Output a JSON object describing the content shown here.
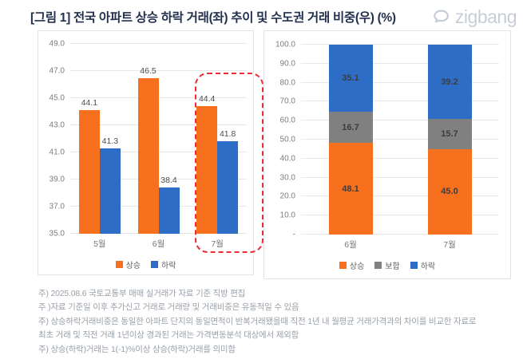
{
  "header": {
    "title": "[그림 1] 전국 아파트 상승 하락 거래(좌) 추이 및 수도권 거래 비중(우) (%)",
    "brand": "zigbang"
  },
  "colors": {
    "rise": "#f7701e",
    "flat": "#808080",
    "fall": "#2e6dc5",
    "highlight_border": "#ec2b33",
    "title_text": "#22304e",
    "logo_gray": "#c7cdd6"
  },
  "chart_data": [
    {
      "type": "bar",
      "title": "전국 아파트 상승 하락 거래(좌) 추이",
      "categories": [
        "5월",
        "6월",
        "7월"
      ],
      "series": [
        {
          "name": "상승",
          "color_key": "rise",
          "values": [
            44.1,
            46.5,
            44.4
          ]
        },
        {
          "name": "하락",
          "color_key": "fall",
          "values": [
            41.3,
            38.4,
            41.8
          ]
        }
      ],
      "ylim": [
        35.0,
        49.0
      ],
      "yticks": [
        {
          "label": "49.0",
          "value": 49
        },
        {
          "label": "47.0",
          "value": 47
        },
        {
          "label": "45.0",
          "value": 45
        },
        {
          "label": "43.0",
          "value": 43
        },
        {
          "label": "41.0",
          "value": 41
        },
        {
          "label": "39.0",
          "value": 39
        },
        {
          "label": "37.0",
          "value": 37
        },
        {
          "label": "35.0",
          "value": 35
        }
      ],
      "grid": true,
      "legend_position": "bottom",
      "legend": [
        "상승",
        "하락"
      ],
      "highlight": {
        "category": "7월",
        "style": "red-dashed-rounded-box"
      }
    },
    {
      "type": "bar",
      "stacked": true,
      "title": "수도권 거래 비중(우)",
      "categories": [
        "6월",
        "7월"
      ],
      "series": [
        {
          "name": "상승",
          "color_key": "rise",
          "values": [
            48.1,
            45.0
          ]
        },
        {
          "name": "보합",
          "color_key": "flat",
          "values": [
            16.7,
            15.7
          ]
        },
        {
          "name": "하락",
          "color_key": "fall",
          "values": [
            35.1,
            39.2
          ]
        }
      ],
      "ylim": [
        0,
        100
      ],
      "yticks": [
        {
          "label": "100.0",
          "value": 100
        },
        {
          "label": "90.0",
          "value": 90
        },
        {
          "label": "80.0",
          "value": 80
        },
        {
          "label": "70.0",
          "value": 70
        },
        {
          "label": "60.0",
          "value": 60
        },
        {
          "label": "50.0",
          "value": 50
        },
        {
          "label": "40.0",
          "value": 40
        },
        {
          "label": "30.0",
          "value": 30
        },
        {
          "label": "20.0",
          "value": 20
        },
        {
          "label": "10.0",
          "value": 10
        },
        {
          "label": "-",
          "value": 0
        }
      ],
      "grid": true,
      "legend_position": "bottom",
      "legend": [
        "상승",
        "보합",
        "하락"
      ]
    }
  ],
  "footnotes": [
    "주) 2025.08.6  국토교통부 매매 실거래가 자료 기준 직방 편집",
    "주 )자료 기준일 이후 추가신고 거래로 거래량 및 거래비중은 유동적일 수 있음",
    "주) 상승하락거래비중은 동일한 아파트 단지의 동일면적이 반복거래됐을때 직전 1년 내 월평균 거래가격과의 차이를 비교한 자료로",
    "최초 거래 및 직전 거래 1년이상 경과된 거래는 가격변동분석 대상에서 제외함",
    "주) 상승(하락)거래는 1(-1)%이상 상승(하락)거래를 의미함"
  ]
}
